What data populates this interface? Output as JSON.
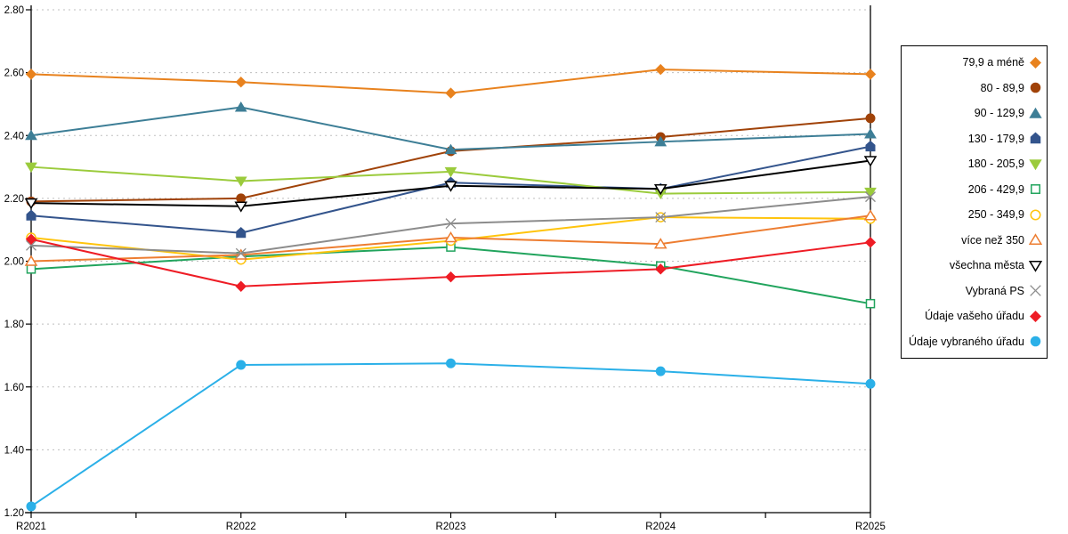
{
  "chart_data": {
    "type": "line",
    "title": "",
    "xlabel": "",
    "ylabel": "",
    "x_categories": [
      "R2021",
      "R2022",
      "R2023",
      "R2024",
      "R2025"
    ],
    "ylim": [
      1.2,
      2.8
    ],
    "ytick_step": 0.2,
    "ytick_labels": [
      "1.20",
      "1.40",
      "1.60",
      "1.80",
      "2.00",
      "2.20",
      "2.40",
      "2.60",
      "2.80"
    ],
    "grid": "horizontal-dashed",
    "legend_position": "right-outside",
    "series": [
      {
        "name": "79,9 a méně",
        "marker": "diamond",
        "open": false,
        "color": "#E8821E",
        "values": [
          2.595,
          2.57,
          2.535,
          2.61,
          2.595
        ]
      },
      {
        "name": "80 - 89,9",
        "marker": "circle",
        "open": false,
        "color": "#A04208",
        "values": [
          2.19,
          2.2,
          2.35,
          2.395,
          2.455
        ]
      },
      {
        "name": "90 - 129,9",
        "marker": "triangle-up",
        "open": false,
        "color": "#3D7E96",
        "values": [
          2.4,
          2.49,
          2.355,
          2.38,
          2.405
        ]
      },
      {
        "name": "130 - 179,9",
        "marker": "pentagon",
        "open": false,
        "color": "#33548C",
        "values": [
          2.145,
          2.09,
          2.25,
          2.23,
          2.365
        ]
      },
      {
        "name": "180 - 205,9",
        "marker": "triangle-down",
        "open": false,
        "color": "#9BCB3C",
        "values": [
          2.3,
          2.255,
          2.285,
          2.215,
          2.22
        ]
      },
      {
        "name": "206 - 429,9",
        "marker": "square",
        "open": true,
        "color": "#21A45D",
        "values": [
          1.975,
          2.015,
          2.045,
          1.985,
          1.865
        ]
      },
      {
        "name": "250 - 349,9",
        "marker": "circle",
        "open": true,
        "color": "#FFC40C",
        "values": [
          2.075,
          2.005,
          2.065,
          2.14,
          2.135
        ]
      },
      {
        "name": "více než 350",
        "marker": "triangle-up",
        "open": true,
        "color": "#ED7D31",
        "values": [
          2.0,
          2.02,
          2.075,
          2.055,
          2.145
        ]
      },
      {
        "name": "všechna města",
        "marker": "triangle-down",
        "open": true,
        "color": "#000000",
        "values": [
          2.185,
          2.175,
          2.24,
          2.23,
          2.32
        ]
      },
      {
        "name": "Vybraná PS",
        "marker": "x",
        "open": true,
        "color": "#8C8C8C",
        "values": [
          2.05,
          2.025,
          2.12,
          2.14,
          2.205
        ]
      },
      {
        "name": "Údaje vašeho úřadu",
        "marker": "diamond",
        "open": false,
        "color": "#EE1C25",
        "values": [
          2.07,
          1.92,
          1.95,
          1.975,
          2.06
        ]
      },
      {
        "name": "Údaje vybraného úřadu",
        "marker": "circle",
        "open": false,
        "color": "#2BB0E8",
        "values": [
          1.22,
          1.67,
          1.675,
          1.65,
          1.61
        ]
      }
    ]
  },
  "colors": {
    "axis": "#000000",
    "gridline": "#BFBFBF",
    "background": "#FFFFFF"
  }
}
